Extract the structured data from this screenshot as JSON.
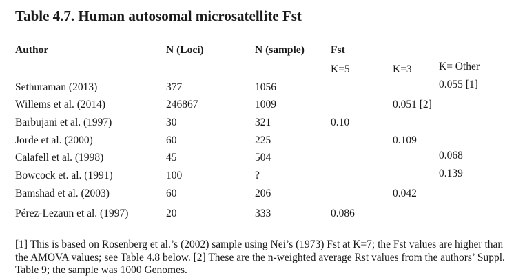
{
  "title": "Table 4.7. Human autosomal microsatellite Fst",
  "headers": {
    "author": "Author",
    "loci": "N (Loci)",
    "sample": "N (sample)",
    "fst": "Fst"
  },
  "subheaders": {
    "k5": "K=5",
    "k3": "K=3",
    "kother": "K= Other"
  },
  "rows": [
    {
      "author": "Sethuraman (2013)",
      "loci": "377",
      "sample": "1056",
      "k5": "",
      "k3": "",
      "kother": "0.055 [1]"
    },
    {
      "author": "Willems et al. (2014)",
      "loci": "246867",
      "sample": "1009",
      "k5": "",
      "k3": "0.051 [2]",
      "kother": ""
    },
    {
      "author": "Barbujani et al. (1997)",
      "loci": "30",
      "sample": "321",
      "k5": "0.10",
      "k3": "",
      "kother": ""
    },
    {
      "author": "Jorde et al. (2000)",
      "loci": "60",
      "sample": "225",
      "k5": "",
      "k3": "0.109",
      "kother": ""
    },
    {
      "author": "Calafell et al. (1998)",
      "loci": "45",
      "sample": "504",
      "k5": "",
      "k3": "",
      "kother": "0.068"
    },
    {
      "author": "Bowcock et. al. (1991)",
      "loci": "100",
      "sample": "?",
      "k5": "",
      "k3": "",
      "kother": "0.139"
    },
    {
      "author": "Bamshad et al. (2003)",
      "loci": "60",
      "sample": "206",
      "k5": "",
      "k3": "0.042",
      "kother": ""
    },
    {
      "author": "Pérez-Lezaun et al. (1997)",
      "loci": "20",
      "sample": "333",
      "k5": "0.086",
      "k3": "",
      "kother": ""
    }
  ],
  "footnote": "[1] This is based on Rosenberg et al.’s (2002) sample using Nei’s (1973) Fst at K=7; the Fst values are higher than the AMOVA values; see Table 4.8 below. [2] These are the n-weighted average Rst values from the authors’ Suppl. Table 9; the sample was 1000 Genomes."
}
